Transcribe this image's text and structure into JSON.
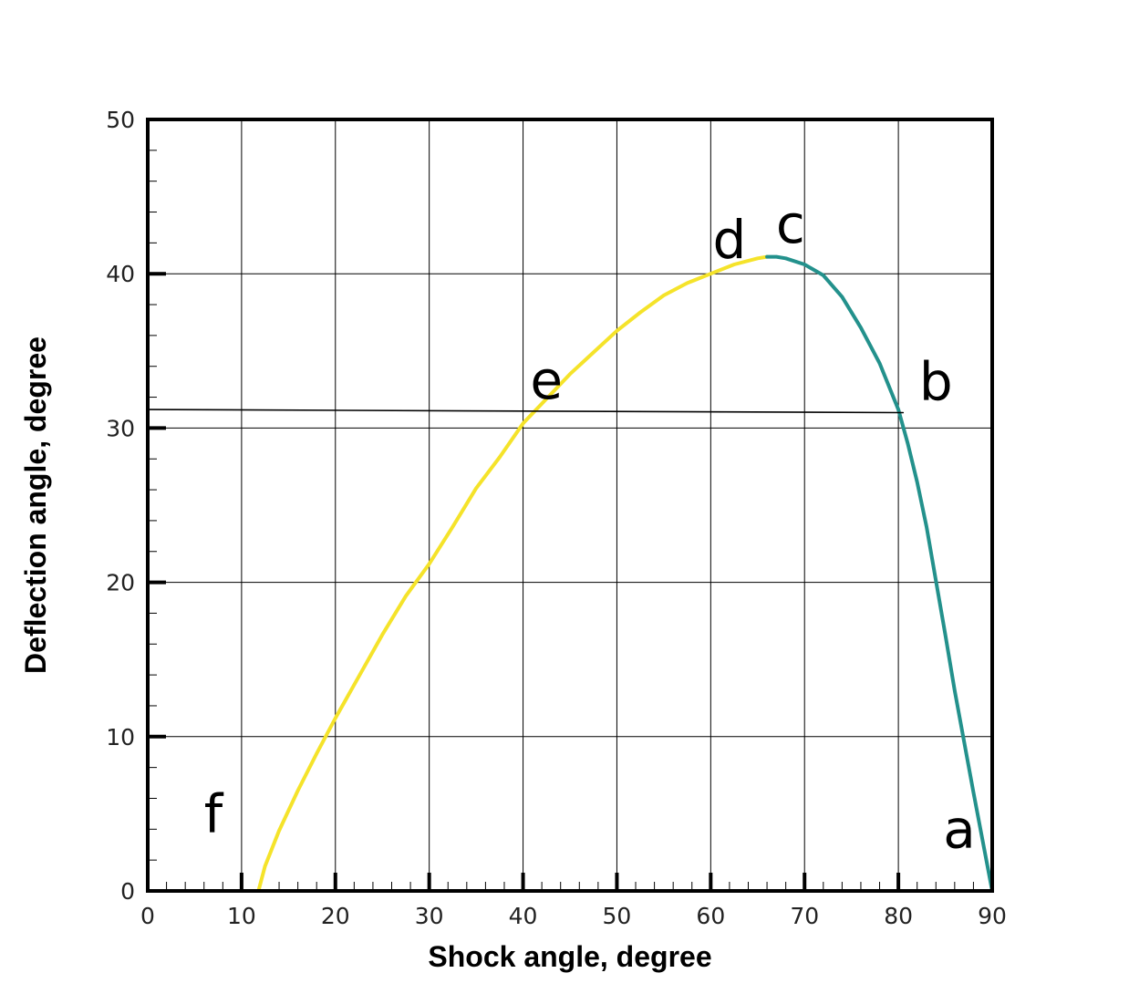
{
  "chart_data": {
    "type": "line",
    "xlabel": "Shock angle,  degree",
    "ylabel": "Deflection angle, degree",
    "xlim": [
      0,
      90
    ],
    "ylim": [
      0,
      50
    ],
    "xticks": [
      "0",
      "10",
      "20",
      "30",
      "40",
      "50",
      "60",
      "70",
      "80",
      "90"
    ],
    "yticks": [
      "0",
      "10",
      "20",
      "30",
      "40",
      "50"
    ],
    "grid": true,
    "series": [
      {
        "color": "#f5e32a",
        "x": [
          11.8,
          12.5,
          14,
          16,
          18,
          20,
          22.5,
          25,
          27.5,
          30,
          32.5,
          35,
          37.5,
          40,
          42.5,
          45,
          47.5,
          50,
          52.5,
          55,
          57.5,
          60,
          62.5,
          65,
          66
        ],
        "y": [
          0,
          1.6,
          3.9,
          6.5,
          8.9,
          11.2,
          13.9,
          16.6,
          19.1,
          21.2,
          23.6,
          26.1,
          28.1,
          30.3,
          31.9,
          33.5,
          34.9,
          36.3,
          37.5,
          38.6,
          39.4,
          40.0,
          40.6,
          41.0,
          41.1
        ]
      },
      {
        "color": "#23918c",
        "x": [
          66,
          67,
          68,
          70,
          72,
          74,
          76,
          78,
          80,
          81,
          82,
          83,
          84,
          85,
          86,
          87,
          88,
          89,
          90
        ],
        "y": [
          41.1,
          41.1,
          41.0,
          40.6,
          39.9,
          38.5,
          36.5,
          34.2,
          31.2,
          29.0,
          26.5,
          23.6,
          20.1,
          16.6,
          13.0,
          9.7,
          6.4,
          3.2,
          0
        ]
      },
      {
        "color": "#000000",
        "x": [
          0,
          80.5
        ],
        "y": [
          31.2,
          31.0
        ]
      }
    ],
    "annotations": [
      {
        "text": "a",
        "x": 86.5,
        "y": 4
      },
      {
        "text": "b",
        "x": 84,
        "y": 33
      },
      {
        "text": "c",
        "x": 68.5,
        "y": 43.2
      },
      {
        "text": "d",
        "x": 62,
        "y": 42.2
      },
      {
        "text": "e",
        "x": 42.5,
        "y": 33.1
      },
      {
        "text": "f",
        "x": 7,
        "y": 5
      }
    ]
  }
}
